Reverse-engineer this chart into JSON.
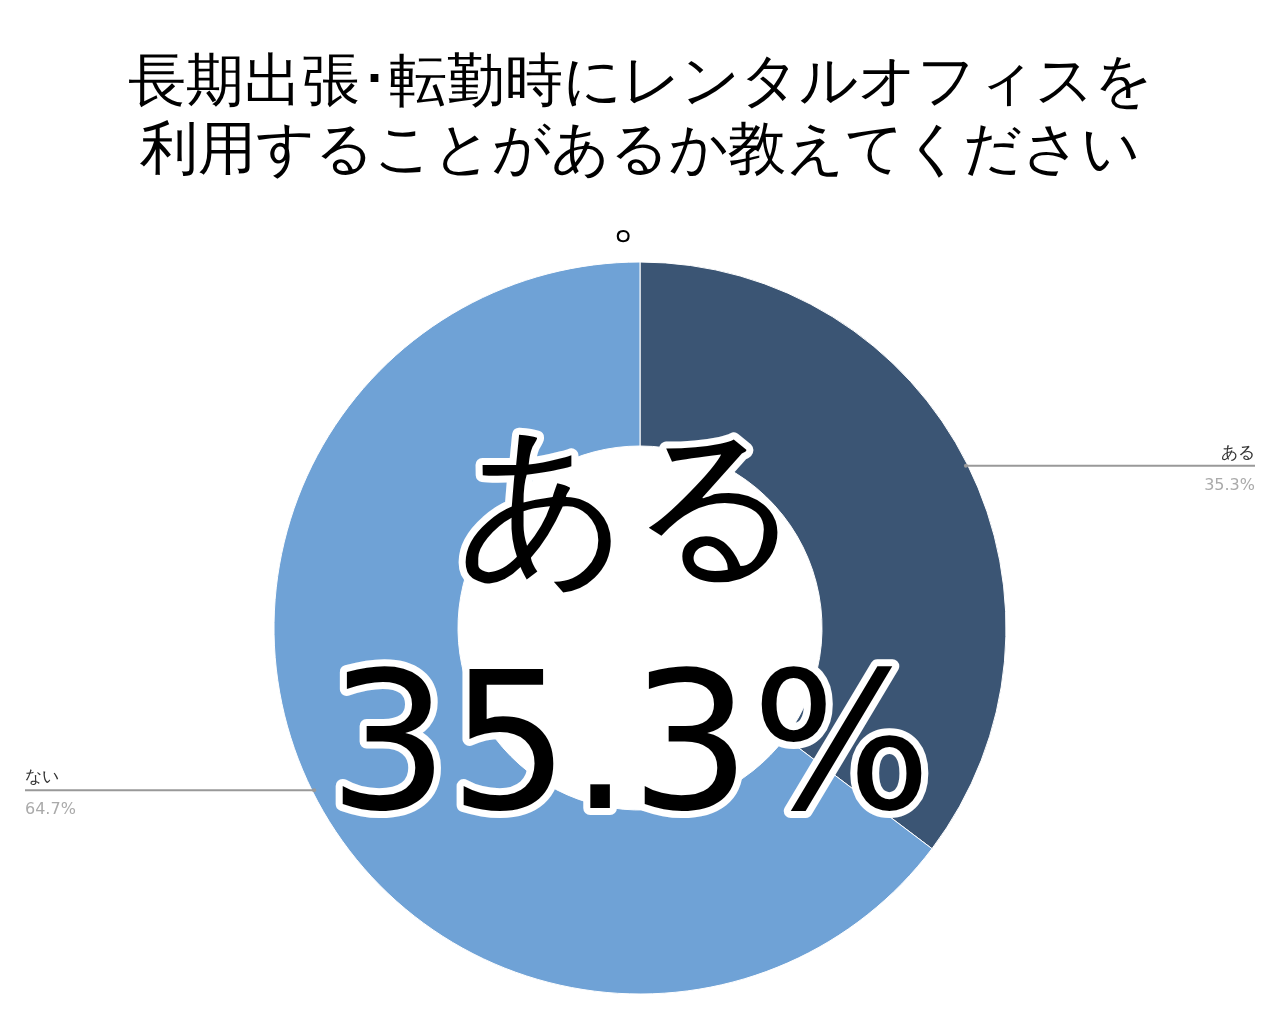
{
  "chart_data": {
    "type": "donut",
    "title": "長期出張･転勤時にレンタルオフィスを利用することがあるか教えてください。",
    "categories": [
      "ある",
      "ない"
    ],
    "values": [
      35.3,
      64.7
    ],
    "colors": [
      "#3b5574",
      "#6fa2d6"
    ],
    "value_labels": [
      "35.3%",
      "64.7%"
    ],
    "annotations": [
      "ある",
      "35.3%"
    ]
  }
}
